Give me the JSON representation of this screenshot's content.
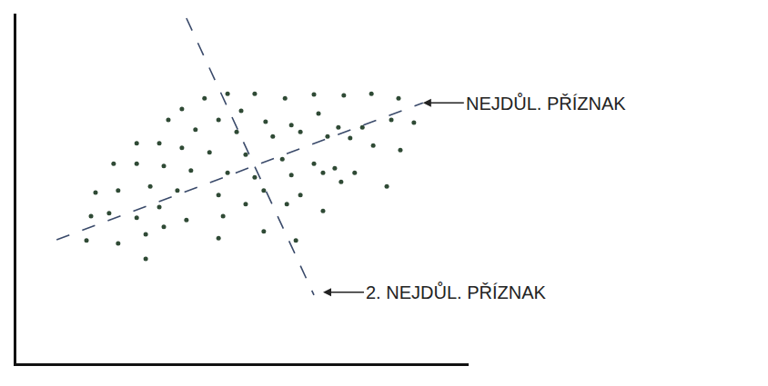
{
  "chart_data": {
    "type": "scatter",
    "xlim": [
      0,
      100
    ],
    "ylim": [
      0,
      100
    ],
    "tick_labels": false,
    "grid": false,
    "series": [
      {
        "type": "scatter",
        "marker": "circle",
        "color": "#2f4a35",
        "x": [
          41.6,
          46.7,
          52.7,
          59.4,
          65.8,
          72.4,
          78.5,
          84.5,
          49.7,
          36.6,
          33.6,
          44.7,
          55.1,
          60.8,
          66.8,
          71.2,
          76.5,
          82.9,
          87.9,
          39.6,
          48.7,
          56.7,
          62.8,
          68.8,
          73.8,
          78.9,
          84.9,
          26.6,
          31.6,
          36.6,
          42.7,
          50.7,
          58.8,
          65.8,
          70.4,
          74.8,
          21.5,
          26.6,
          32.6,
          38.6,
          46.7,
          52.7,
          60.8,
          67.8,
          71.8,
          81.9,
          17.5,
          22.5,
          29.6,
          35.6,
          44.7,
          54.7,
          62.8,
          16.5,
          20.5,
          26.6,
          31.6,
          37.6,
          45.7,
          50.7,
          59.8,
          67.8,
          15.5,
          22.5,
          28.6,
          32.6,
          44.7,
          54.7,
          61.8,
          28.6
        ],
        "values": [
          75.8,
          77.1,
          77.1,
          75.8,
          76.9,
          76.6,
          77.1,
          75.8,
          72.2,
          72.7,
          69.6,
          69.6,
          69.1,
          68.1,
          71.4,
          67.5,
          67.5,
          69.6,
          68.8,
          66.8,
          66.2,
          64.9,
          66.2,
          64.9,
          64.4,
          62.3,
          61.0,
          62.9,
          62.9,
          61.6,
          60.3,
          59.7,
          58.4,
          57.1,
          55.8,
          54.5,
          57.1,
          57.1,
          56.4,
          55.1,
          54.5,
          53.2,
          53.8,
          54.5,
          51.9,
          50.6,
          48.8,
          49.4,
          50.6,
          49.4,
          48.1,
          49.4,
          48.1,
          42.1,
          42.9,
          41.6,
          44.7,
          41.0,
          42.1,
          45.5,
          45.5,
          43.6,
          35.1,
          34.3,
          36.9,
          39.0,
          35.8,
          37.7,
          35.1,
          29.9
        ]
      },
      {
        "type": "line",
        "line_style": "dashed",
        "color": "#3a4a6a",
        "x": [
          8.9,
          89.9
        ],
        "values": [
          35.3,
          74.5
        ]
      },
      {
        "type": "line",
        "line_style": "dashed",
        "color": "#3a4a6a",
        "x": [
          37.6,
          65.8
        ],
        "values": [
          98.7,
          19.5
        ]
      }
    ],
    "annotations": [
      {
        "text": "NEJDŮL. PŘÍZNAK",
        "x": 89.9,
        "y": 74.5
      },
      {
        "text": "2. NEJDŮL. PŘÍZNAK",
        "x": 67.8,
        "y": 20.3
      }
    ]
  }
}
